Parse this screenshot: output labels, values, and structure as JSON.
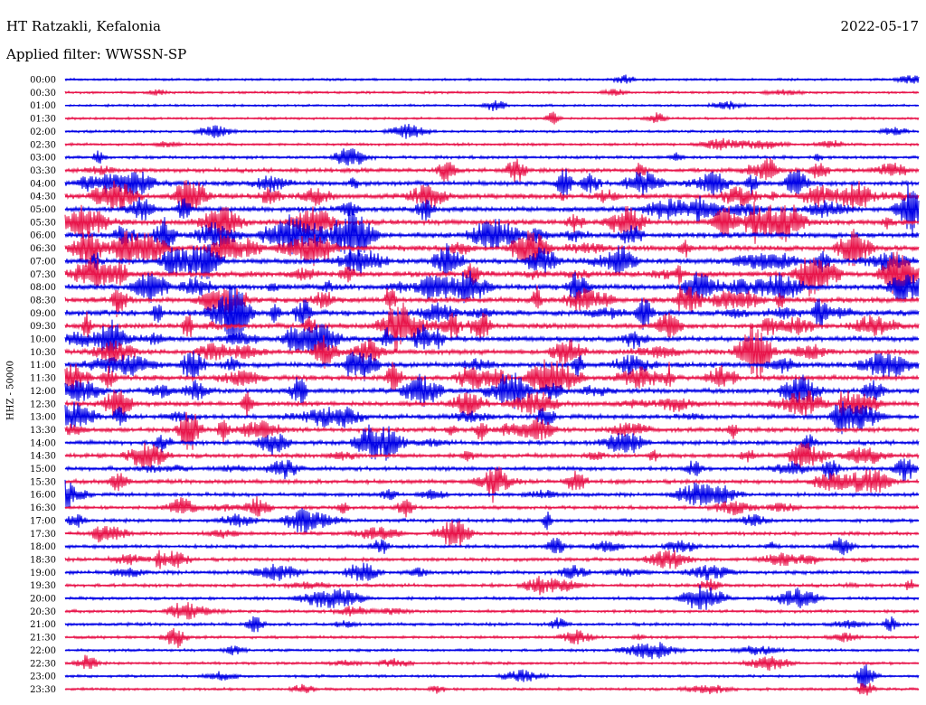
{
  "header": {
    "station": "HT Ratzakli, Kefalonia",
    "date": "2022-05-17",
    "filter": "Applied filter: WWSSN-SP"
  },
  "chart_data": {
    "type": "line",
    "title": "HT Ratzakli, Kefalonia",
    "subtitle": "Applied filter: WWSSN-SP",
    "ylabel": "HHZ - 50000",
    "xlabel": "",
    "grid": false,
    "colors": [
      "#0000e6",
      "#e8144a"
    ],
    "rows": [
      "00:00",
      "00:30",
      "01:00",
      "01:30",
      "02:00",
      "02:30",
      "03:00",
      "03:30",
      "04:00",
      "04:30",
      "05:00",
      "05:30",
      "06:00",
      "06:30",
      "07:00",
      "07:30",
      "08:00",
      "08:30",
      "09:00",
      "09:30",
      "10:00",
      "10:30",
      "11:00",
      "11:30",
      "12:00",
      "12:30",
      "13:00",
      "13:30",
      "14:00",
      "14:30",
      "15:00",
      "15:30",
      "16:00",
      "16:30",
      "17:00",
      "17:30",
      "18:00",
      "18:30",
      "19:00",
      "19:30",
      "20:00",
      "20:30",
      "21:00",
      "21:30",
      "22:00",
      "22:30",
      "23:00",
      "23:30"
    ],
    "activity": [
      0.1,
      0.12,
      0.1,
      0.1,
      0.15,
      0.2,
      0.3,
      0.55,
      0.75,
      0.85,
      0.8,
      0.85,
      0.9,
      0.95,
      0.95,
      0.95,
      0.95,
      0.9,
      0.95,
      0.9,
      0.8,
      0.8,
      0.85,
      0.8,
      0.8,
      0.75,
      0.7,
      0.7,
      0.6,
      0.6,
      0.55,
      0.55,
      0.45,
      0.4,
      0.4,
      0.4,
      0.4,
      0.4,
      0.45,
      0.35,
      0.3,
      0.3,
      0.3,
      0.25,
      0.2,
      0.2,
      0.2,
      0.2
    ]
  }
}
